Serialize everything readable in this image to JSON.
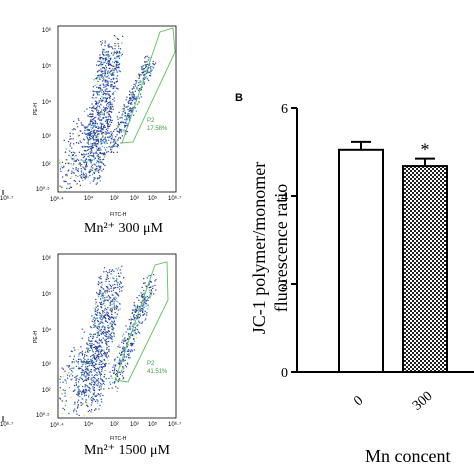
{
  "panel_b_label": "B",
  "flow_plots": [
    {
      "caption": "Mn²⁺ 300 μM",
      "gate_name": "P2",
      "gate_percent": "17.58%",
      "y_axis_label": "PE-H",
      "x_axis_label": "FITC-H",
      "y_ticks": [
        "10⁶",
        "10⁵",
        "10⁴",
        "10³",
        "10²",
        "10⁰·⁵"
      ],
      "x_ticks": [
        "10⁰·⁴",
        "10⁴",
        "10²",
        "10³",
        "10⁵",
        "10⁶",
        "10⁶·⁷"
      ]
    },
    {
      "caption": "Mn²⁺ 1500 μM",
      "gate_name": "P2",
      "gate_percent": "41.51%",
      "y_axis_label": "PE-H",
      "x_axis_label": "FITC-H",
      "y_ticks": [
        "10⁶",
        "10⁵",
        "10⁴",
        "10³",
        "10²",
        "10⁰·⁵"
      ],
      "x_ticks": [
        "10⁰·⁴",
        "10⁴",
        "10²",
        "10³",
        "10⁵",
        "10⁶",
        "10⁶·⁷"
      ]
    }
  ],
  "left_partial_ticks": [
    "10⁶·⁷",
    "10⁶·⁷"
  ],
  "chart_data": {
    "type": "bar",
    "categories": [
      "0",
      "300"
    ],
    "values": [
      5.05,
      4.68
    ],
    "errors": [
      0.18,
      0.17
    ],
    "significance": [
      "",
      "*"
    ],
    "bar_fills": [
      "white",
      "checkered"
    ],
    "ylabel_line1": "JC-1 polymer/monomer",
    "ylabel_line2": "fluorescence ratio",
    "xlabel": "Mn concent",
    "ylim": [
      0,
      6
    ],
    "yticks": [
      "0",
      "2",
      "4",
      "6"
    ],
    "colors": {
      "axis": "#000000",
      "check_dark": "#222222",
      "gate": "#5cc35c",
      "scatter_main": "#2a3fa0",
      "scatter_mid": "#35b3c8",
      "scatter_hi": "#e2e23a"
    }
  }
}
